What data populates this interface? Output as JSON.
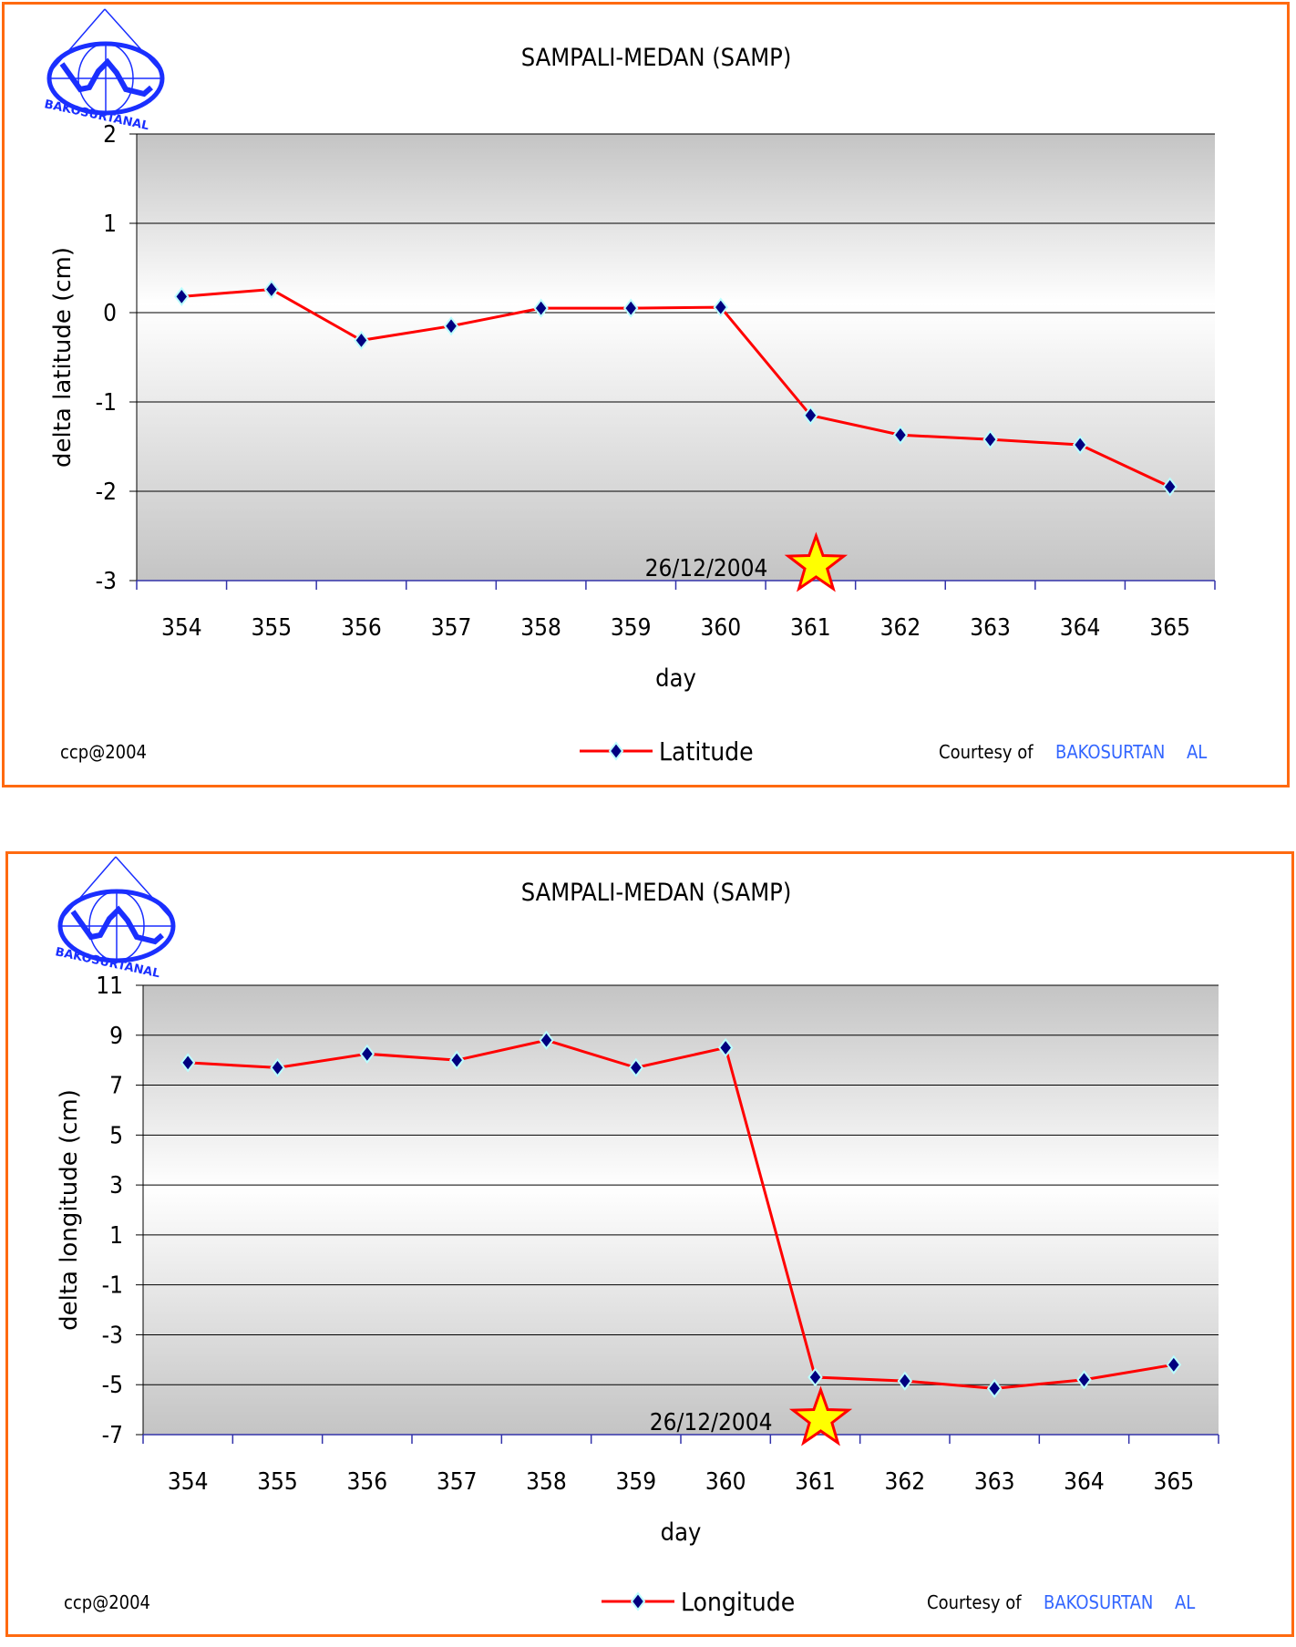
{
  "chart_data": [
    {
      "type": "line",
      "title": "SAMPALI-MEDAN (SAMP)",
      "xlabel": "day",
      "ylabel": "delta latitude (cm)",
      "categories": [
        "354",
        "355",
        "356",
        "357",
        "358",
        "359",
        "360",
        "361",
        "362",
        "363",
        "364",
        "365"
      ],
      "series": [
        {
          "name": "Latitude",
          "values": [
            0.18,
            0.26,
            -0.31,
            -0.15,
            0.05,
            0.05,
            0.06,
            -1.15,
            -1.37,
            -1.42,
            -1.48,
            -1.95
          ],
          "color": "#ff0000",
          "marker_color": "#000080"
        }
      ],
      "ylim": [
        -3,
        2
      ],
      "yticks": [
        2,
        1,
        0,
        -1,
        -2,
        -3
      ],
      "grid": true,
      "legend": "bottom-center",
      "annotation": {
        "text": "26/12/2004",
        "category": "361",
        "marker": "star"
      },
      "footer_left": "ccp@2004",
      "courtesy_label": "Courtesy of",
      "courtesy_org": "BAKOSURTAN",
      "courtesy_org2": "AL",
      "logo_text": "BAKOSURTANAL"
    },
    {
      "type": "line",
      "title": "SAMPALI-MEDAN (SAMP)",
      "xlabel": "day",
      "ylabel": "delta longitude (cm)",
      "categories": [
        "354",
        "355",
        "356",
        "357",
        "358",
        "359",
        "360",
        "361",
        "362",
        "363",
        "364",
        "365"
      ],
      "series": [
        {
          "name": "Longitude",
          "values": [
            7.9,
            7.7,
            8.25,
            8.0,
            8.8,
            7.7,
            8.5,
            -4.7,
            -4.85,
            -5.15,
            -4.8,
            -4.2
          ],
          "color": "#ff0000",
          "marker_color": "#000080"
        }
      ],
      "ylim": [
        -7,
        11
      ],
      "yticks": [
        11,
        9,
        7,
        5,
        3,
        1,
        -1,
        -3,
        -5,
        -7
      ],
      "grid": true,
      "legend": "bottom-center",
      "annotation": {
        "text": "26/12/2004",
        "category": "361",
        "marker": "star"
      },
      "footer_left": "ccp@2004",
      "courtesy_label": "Courtesy of",
      "courtesy_org": "BAKOSURTAN",
      "courtesy_org2": "AL",
      "logo_text": "BAKOSURTANAL"
    }
  ]
}
